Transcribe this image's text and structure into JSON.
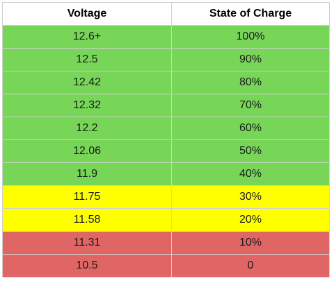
{
  "table": {
    "headers": [
      "Voltage",
      "State of Charge"
    ],
    "rows": [
      {
        "voltage": "12.6+",
        "soc": "100%",
        "color": "#77d657"
      },
      {
        "voltage": "12.5",
        "soc": "90%",
        "color": "#77d657"
      },
      {
        "voltage": "12.42",
        "soc": "80%",
        "color": "#77d657"
      },
      {
        "voltage": "12.32",
        "soc": "70%",
        "color": "#77d657"
      },
      {
        "voltage": "12.2",
        "soc": "60%",
        "color": "#77d657"
      },
      {
        "voltage": "12.06",
        "soc": "50%",
        "color": "#77d657"
      },
      {
        "voltage": "11.9",
        "soc": "40%",
        "color": "#77d657"
      },
      {
        "voltage": "11.75",
        "soc": "30%",
        "color": "#ffff00"
      },
      {
        "voltage": "11.58",
        "soc": "20%",
        "color": "#ffff00"
      },
      {
        "voltage": "11.31",
        "soc": "10%",
        "color": "#e06666"
      },
      {
        "voltage": "10.5",
        "soc": "0",
        "color": "#e06666"
      }
    ]
  }
}
